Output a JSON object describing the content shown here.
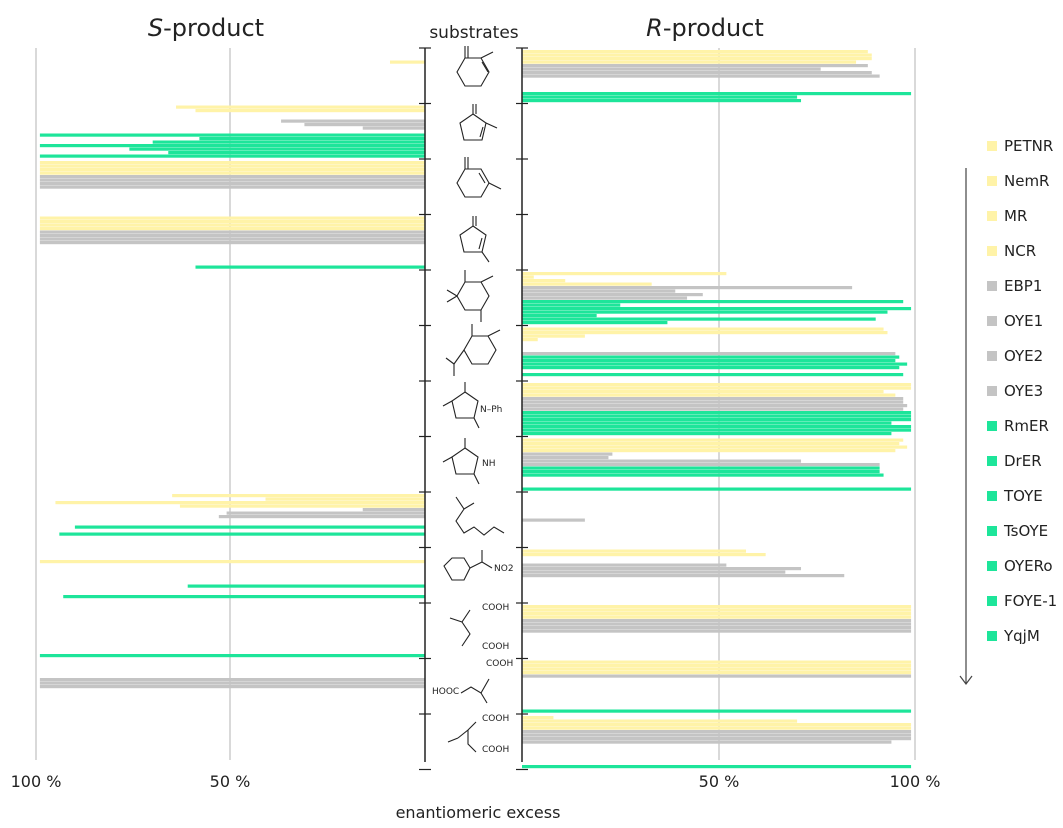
{
  "chart_data": {
    "type": "bar",
    "orientation": "horizontal",
    "layout": "mirrored two-panel (S-product left, R-product right)",
    "title_left_prefix": "S",
    "title_left_suffix": "-product",
    "title_right_prefix": "R",
    "title_right_suffix": "-product",
    "center_label": "substrates",
    "xlabel": "enantiomeric excess",
    "tick_labels": [
      "100 %",
      "50 %",
      "100 %",
      "50 %",
      "100 %"
    ],
    "xlim_percent": [
      0,
      100
    ],
    "grid_values": [
      50,
      100
    ],
    "series_colors": {
      "PETNR": "#fff3a8",
      "NemR": "#fff3a8",
      "MR": "#fff3a8",
      "NCR": "#fff3a8",
      "EBP1": "#c4c4c4",
      "OYE1": "#c4c4c4",
      "OYE2": "#c4c4c4",
      "OYE3": "#c4c4c4",
      "RmER": "#1de59a",
      "DrER": "#1de59a",
      "TOYE": "#1de59a",
      "TsOYE": "#1de59a",
      "OYERo": "#1de59a",
      "FOYE-1": "#1de59a",
      "YqjM": "#1de59a"
    },
    "enzymes": [
      "PETNR",
      "NemR",
      "MR",
      "NCR",
      "EBP1",
      "OYE1",
      "OYE2",
      "OYE3",
      "RmER",
      "DrER",
      "TOYE",
      "TsOYE",
      "OYERo",
      "FOYE-1",
      "YqjM"
    ],
    "legend": [
      "PETNR",
      "NemR",
      "MR",
      "NCR",
      "EBP1",
      "OYE1",
      "OYE2",
      "OYE3",
      "RmER",
      "DrER",
      "TOYE",
      "TsOYE",
      "OYERo",
      "FOYE-1",
      "YqjM"
    ],
    "legend_placement": "right",
    "substrate_labels": {
      "s7": [
        "N–Ph"
      ],
      "s8": [
        "NH"
      ],
      "s10": [
        "NO2"
      ],
      "s11": [
        "COOH",
        "COOH"
      ],
      "s12": [
        "COOH",
        "HOOC"
      ],
      "s13": [
        "COOH",
        "COOH"
      ]
    },
    "note_value_format": "[S_ee_percent, R_ee_percent] per enzyme; 0 = no bar",
    "substrates": [
      {
        "id": "s1",
        "ee": [
          [
            0,
            88
          ],
          [
            0,
            89
          ],
          [
            0,
            89
          ],
          [
            9,
            85
          ],
          [
            0,
            88
          ],
          [
            0,
            76
          ],
          [
            0,
            89
          ],
          [
            0,
            91
          ],
          [
            0,
            0
          ],
          [
            0,
            0
          ],
          [
            0,
            0
          ],
          [
            0,
            0
          ],
          [
            0,
            99
          ],
          [
            0,
            70
          ],
          [
            0,
            71
          ]
        ]
      },
      {
        "id": "s2",
        "ee": [
          [
            64,
            0
          ],
          [
            59,
            0
          ],
          [
            0,
            0
          ],
          [
            0,
            0
          ],
          [
            37,
            0
          ],
          [
            31,
            0
          ],
          [
            16,
            0
          ],
          [
            0,
            0
          ],
          [
            99,
            0
          ],
          [
            58,
            0
          ],
          [
            70,
            0
          ],
          [
            99,
            0
          ],
          [
            76,
            0
          ],
          [
            66,
            0
          ],
          [
            99,
            0
          ]
        ]
      },
      {
        "id": "s3",
        "ee": [
          [
            99,
            0
          ],
          [
            99,
            0
          ],
          [
            99,
            0
          ],
          [
            99,
            0
          ],
          [
            99,
            0
          ],
          [
            99,
            0
          ],
          [
            99,
            0
          ],
          [
            99,
            0
          ],
          [
            0,
            0
          ],
          [
            0,
            0
          ],
          [
            0,
            0
          ],
          [
            0,
            0
          ],
          [
            0,
            0
          ],
          [
            0,
            0
          ],
          [
            0,
            0
          ]
        ]
      },
      {
        "id": "s4",
        "ee": [
          [
            99,
            0
          ],
          [
            99,
            0
          ],
          [
            99,
            0
          ],
          [
            99,
            0
          ],
          [
            99,
            0
          ],
          [
            99,
            0
          ],
          [
            99,
            0
          ],
          [
            99,
            0
          ],
          [
            0,
            0
          ],
          [
            0,
            0
          ],
          [
            0,
            0
          ],
          [
            0,
            0
          ],
          [
            0,
            0
          ],
          [
            0,
            0
          ],
          [
            59,
            0
          ]
        ]
      },
      {
        "id": "s5",
        "ee": [
          [
            0,
            52
          ],
          [
            0,
            3
          ],
          [
            0,
            11
          ],
          [
            0,
            33
          ],
          [
            0,
            84
          ],
          [
            0,
            39
          ],
          [
            0,
            46
          ],
          [
            0,
            42
          ],
          [
            0,
            97
          ],
          [
            0,
            25
          ],
          [
            0,
            99
          ],
          [
            0,
            93
          ],
          [
            0,
            19
          ],
          [
            0,
            90
          ],
          [
            0,
            37
          ]
        ]
      },
      {
        "id": "s6",
        "ee": [
          [
            0,
            92
          ],
          [
            0,
            93
          ],
          [
            0,
            16
          ],
          [
            0,
            4
          ],
          [
            0,
            0
          ],
          [
            0,
            0
          ],
          [
            0,
            0
          ],
          [
            0,
            95
          ],
          [
            0,
            96
          ],
          [
            0,
            95
          ],
          [
            0,
            98
          ],
          [
            0,
            96
          ],
          [
            0,
            0
          ],
          [
            0,
            97
          ],
          [
            0,
            0
          ]
        ]
      },
      {
        "id": "s7",
        "ee": [
          [
            0,
            99
          ],
          [
            0,
            99
          ],
          [
            0,
            92
          ],
          [
            0,
            95
          ],
          [
            0,
            97
          ],
          [
            0,
            97
          ],
          [
            0,
            98
          ],
          [
            0,
            97
          ],
          [
            0,
            99
          ],
          [
            0,
            99
          ],
          [
            0,
            99
          ],
          [
            0,
            94
          ],
          [
            0,
            99
          ],
          [
            0,
            99
          ],
          [
            0,
            94
          ]
        ]
      },
      {
        "id": "s8",
        "ee": [
          [
            0,
            97
          ],
          [
            0,
            96
          ],
          [
            0,
            98
          ],
          [
            0,
            95
          ],
          [
            0,
            23
          ],
          [
            0,
            22
          ],
          [
            0,
            71
          ],
          [
            0,
            91
          ],
          [
            0,
            91
          ],
          [
            0,
            91
          ],
          [
            0,
            92
          ],
          [
            0,
            0
          ],
          [
            0,
            0
          ],
          [
            0,
            0
          ],
          [
            0,
            99
          ]
        ]
      },
      {
        "id": "s9",
        "ee": [
          [
            65,
            0
          ],
          [
            41,
            0
          ],
          [
            95,
            0
          ],
          [
            63,
            0
          ],
          [
            16,
            0
          ],
          [
            51,
            0
          ],
          [
            53,
            0
          ],
          [
            0,
            16
          ],
          [
            0,
            0
          ],
          [
            90,
            0
          ],
          [
            0,
            0
          ],
          [
            94,
            0
          ],
          [
            0,
            0
          ],
          [
            0,
            0
          ],
          [
            0,
            0
          ]
        ]
      },
      {
        "id": "s10",
        "ee": [
          [
            0,
            57
          ],
          [
            0,
            62
          ],
          [
            0,
            0
          ],
          [
            99,
            0
          ],
          [
            0,
            52
          ],
          [
            0,
            71
          ],
          [
            0,
            67
          ],
          [
            0,
            82
          ],
          [
            0,
            0
          ],
          [
            0,
            0
          ],
          [
            61,
            0
          ],
          [
            0,
            0
          ],
          [
            0,
            0
          ],
          [
            93,
            0
          ],
          [
            0,
            0
          ]
        ]
      },
      {
        "id": "s11",
        "ee": [
          [
            0,
            99
          ],
          [
            0,
            99
          ],
          [
            0,
            99
          ],
          [
            0,
            99
          ],
          [
            0,
            99
          ],
          [
            0,
            99
          ],
          [
            0,
            99
          ],
          [
            0,
            99
          ],
          [
            0,
            0
          ],
          [
            0,
            0
          ],
          [
            0,
            0
          ],
          [
            0,
            0
          ],
          [
            0,
            0
          ],
          [
            0,
            0
          ],
          [
            99,
            0
          ]
        ]
      },
      {
        "id": "s12",
        "ee": [
          [
            0,
            99
          ],
          [
            0,
            99
          ],
          [
            0,
            99
          ],
          [
            0,
            99
          ],
          [
            0,
            99
          ],
          [
            99,
            0
          ],
          [
            99,
            0
          ],
          [
            99,
            0
          ],
          [
            0,
            0
          ],
          [
            0,
            0
          ],
          [
            0,
            0
          ],
          [
            0,
            0
          ],
          [
            0,
            0
          ],
          [
            0,
            0
          ],
          [
            0,
            99
          ]
        ]
      },
      {
        "id": "s13",
        "ee": [
          [
            0,
            8
          ],
          [
            0,
            70
          ],
          [
            0,
            99
          ],
          [
            0,
            99
          ],
          [
            0,
            99
          ],
          [
            0,
            99
          ],
          [
            0,
            99
          ],
          [
            0,
            94
          ],
          [
            0,
            0
          ],
          [
            0,
            0
          ],
          [
            0,
            0
          ],
          [
            0,
            0
          ],
          [
            0,
            0
          ],
          [
            0,
            0
          ],
          [
            0,
            99
          ]
        ]
      }
    ]
  }
}
